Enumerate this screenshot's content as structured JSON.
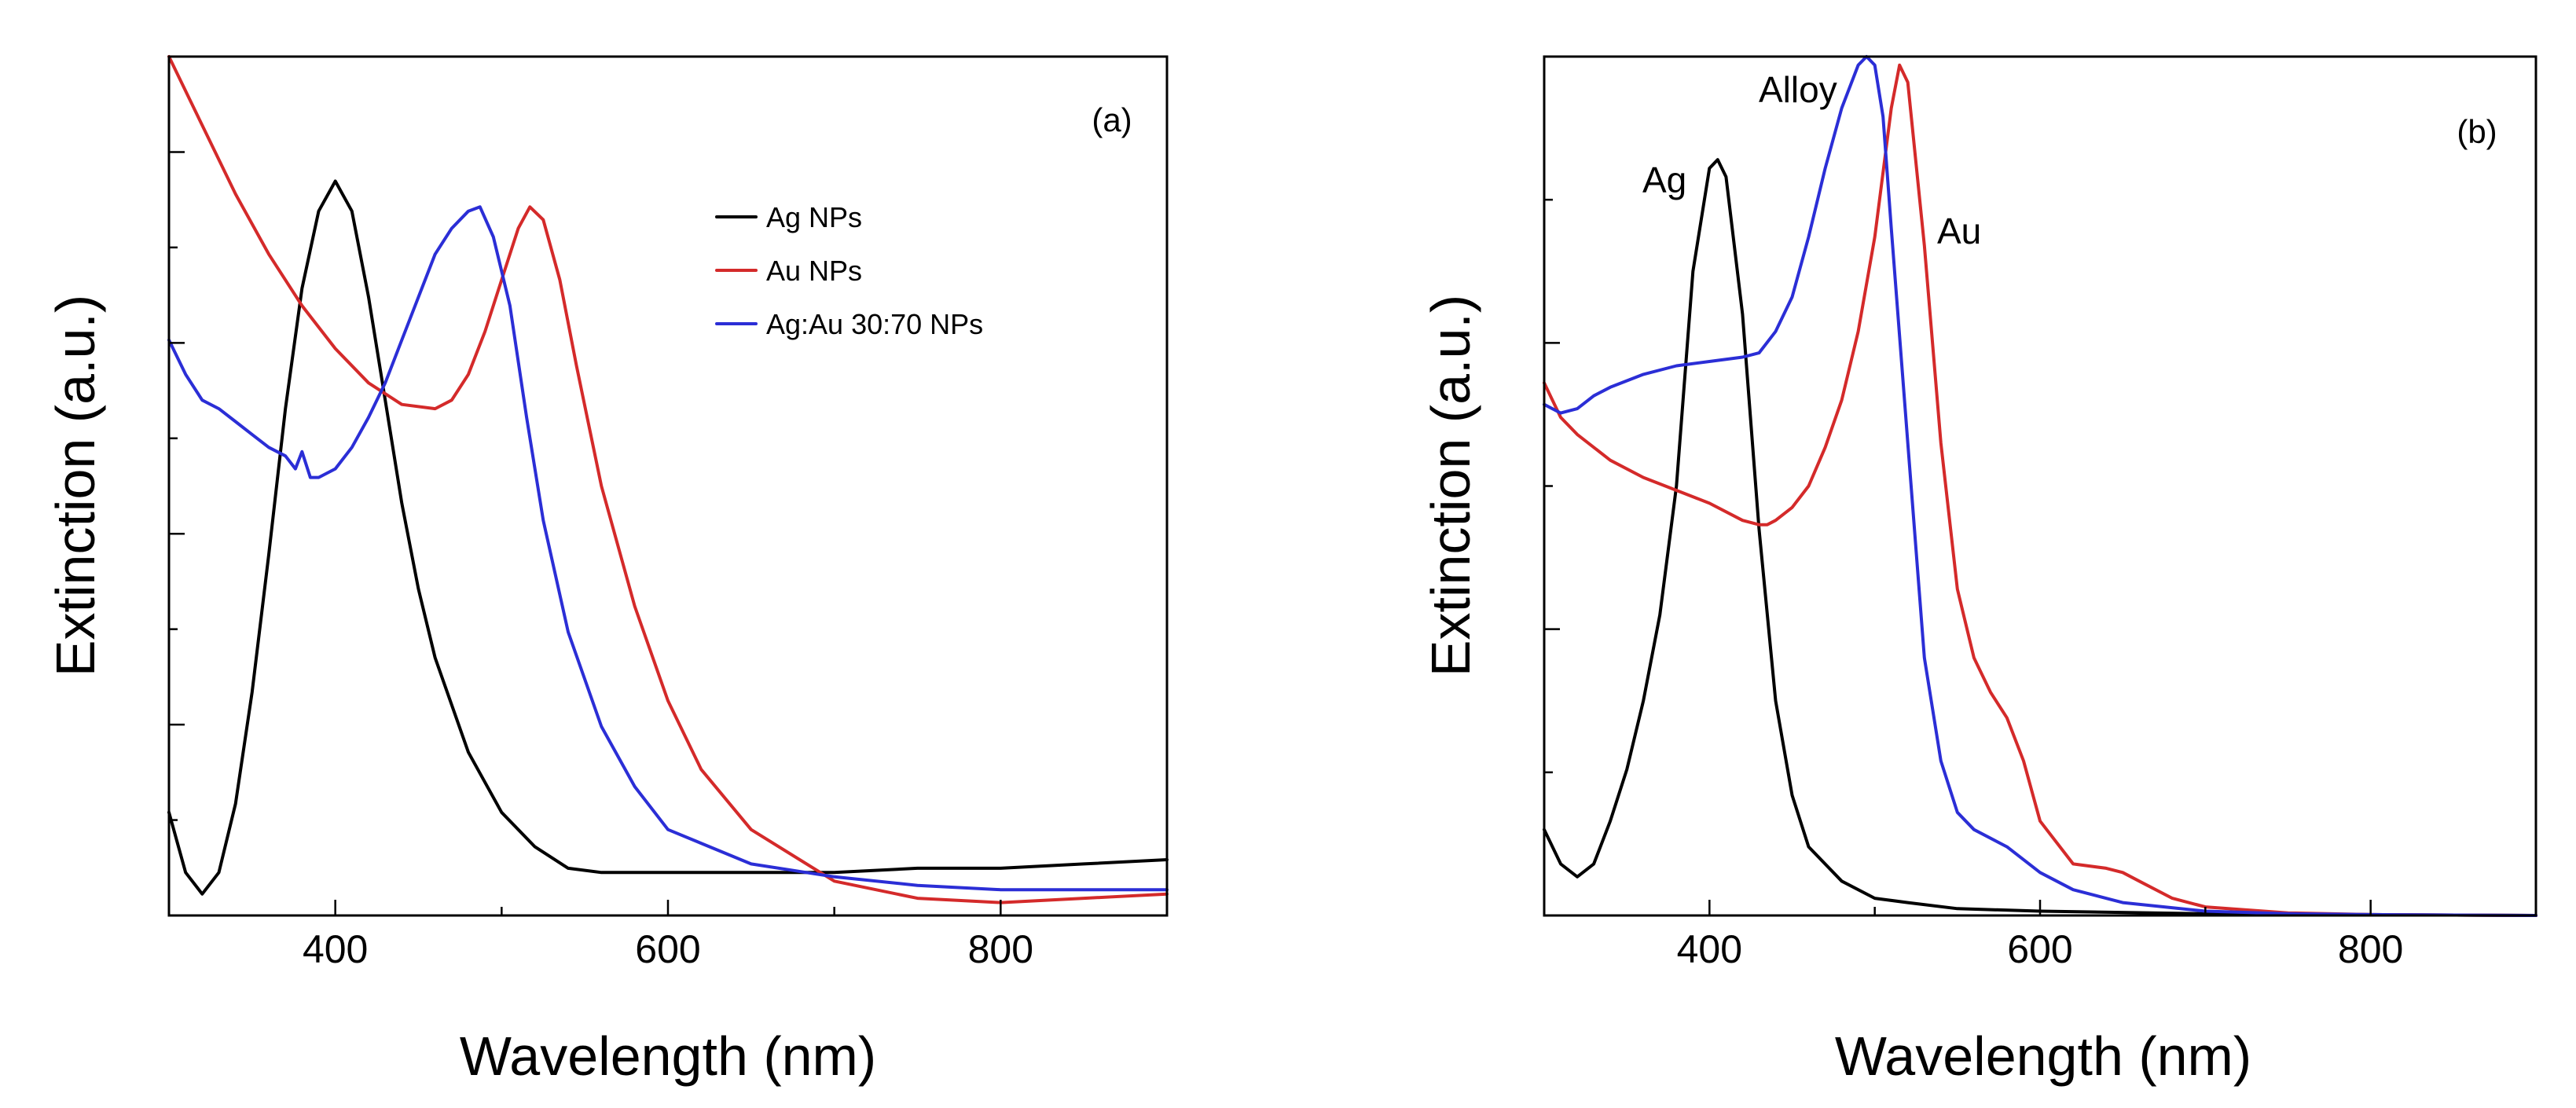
{
  "chart_data": [
    {
      "type": "line",
      "panel_label": "(a)",
      "title": "",
      "xlabel": "Wavelength (nm)",
      "ylabel": "Extinction (a.u.)",
      "xlim": [
        300,
        900
      ],
      "ylim": [
        0,
        1
      ],
      "x_ticks": [
        400,
        600,
        800
      ],
      "y_tick_labels_shown": false,
      "grid": false,
      "legend_position": "top-right",
      "series": [
        {
          "name": "Ag NPs",
          "color": "#000000",
          "x": [
            300,
            310,
            320,
            330,
            340,
            350,
            360,
            370,
            380,
            390,
            400,
            410,
            420,
            430,
            440,
            450,
            460,
            480,
            500,
            520,
            540,
            560,
            580,
            600,
            650,
            700,
            750,
            800,
            850,
            900
          ],
          "y": [
            0.12,
            0.05,
            0.025,
            0.05,
            0.13,
            0.26,
            0.42,
            0.59,
            0.73,
            0.82,
            0.855,
            0.82,
            0.72,
            0.6,
            0.48,
            0.38,
            0.3,
            0.19,
            0.12,
            0.08,
            0.055,
            0.05,
            0.05,
            0.05,
            0.05,
            0.05,
            0.055,
            0.055,
            0.06,
            0.065
          ]
        },
        {
          "name": "Au NPs",
          "color": "#d42a2a",
          "x": [
            300,
            320,
            340,
            360,
            380,
            400,
            420,
            440,
            460,
            470,
            480,
            490,
            500,
            510,
            517,
            525,
            535,
            545,
            560,
            580,
            600,
            620,
            650,
            700,
            750,
            800,
            850,
            900
          ],
          "y": [
            1.0,
            0.92,
            0.84,
            0.77,
            0.71,
            0.66,
            0.62,
            0.595,
            0.59,
            0.6,
            0.63,
            0.68,
            0.74,
            0.8,
            0.825,
            0.81,
            0.74,
            0.64,
            0.5,
            0.36,
            0.25,
            0.17,
            0.1,
            0.04,
            0.02,
            0.015,
            0.02,
            0.025
          ]
        },
        {
          "name": "Ag:Au 30:70 NPs",
          "color": "#2b2ed6",
          "x": [
            300,
            310,
            320,
            330,
            340,
            350,
            360,
            370,
            376,
            380,
            385,
            390,
            400,
            410,
            420,
            430,
            440,
            450,
            460,
            470,
            480,
            487,
            495,
            505,
            515,
            525,
            540,
            560,
            580,
            600,
            650,
            700,
            750,
            800,
            850,
            900
          ],
          "y": [
            0.67,
            0.63,
            0.6,
            0.59,
            0.575,
            0.56,
            0.545,
            0.535,
            0.52,
            0.54,
            0.51,
            0.51,
            0.52,
            0.545,
            0.58,
            0.62,
            0.67,
            0.72,
            0.77,
            0.8,
            0.82,
            0.825,
            0.79,
            0.71,
            0.58,
            0.46,
            0.33,
            0.22,
            0.15,
            0.1,
            0.06,
            0.045,
            0.035,
            0.03,
            0.03,
            0.03
          ]
        }
      ]
    },
    {
      "type": "line",
      "panel_label": "(b)",
      "title": "",
      "xlabel": "Wavelength (nm)",
      "ylabel": "Extinction (a.u.)",
      "xlim": [
        300,
        900
      ],
      "ylim": [
        0,
        1
      ],
      "x_ticks": [
        400,
        600,
        800
      ],
      "y_tick_labels_shown": false,
      "grid": false,
      "annotations": [
        "Ag",
        "Alloy",
        "Au"
      ],
      "series": [
        {
          "name": "Ag",
          "color": "#000000",
          "x": [
            300,
            310,
            320,
            330,
            340,
            350,
            360,
            370,
            380,
            390,
            400,
            405,
            410,
            420,
            430,
            440,
            450,
            460,
            480,
            500,
            520,
            550,
            600,
            700,
            800,
            900
          ],
          "y": [
            0.1,
            0.06,
            0.045,
            0.06,
            0.11,
            0.17,
            0.25,
            0.35,
            0.5,
            0.75,
            0.87,
            0.88,
            0.86,
            0.7,
            0.45,
            0.25,
            0.14,
            0.08,
            0.04,
            0.02,
            0.015,
            0.008,
            0.005,
            0.002,
            0.001,
            0.0
          ]
        },
        {
          "name": "Au",
          "color": "#d42a2a",
          "x": [
            300,
            310,
            320,
            340,
            360,
            380,
            400,
            420,
            430,
            435,
            440,
            450,
            460,
            470,
            480,
            490,
            500,
            510,
            515,
            520,
            530,
            540,
            550,
            560,
            570,
            580,
            590,
            600,
            620,
            640,
            650,
            660,
            680,
            700,
            750,
            800,
            900
          ],
          "y": [
            0.62,
            0.58,
            0.56,
            0.53,
            0.51,
            0.495,
            0.48,
            0.46,
            0.455,
            0.455,
            0.46,
            0.475,
            0.5,
            0.545,
            0.6,
            0.68,
            0.79,
            0.94,
            0.99,
            0.97,
            0.78,
            0.55,
            0.38,
            0.3,
            0.26,
            0.23,
            0.18,
            0.11,
            0.06,
            0.055,
            0.05,
            0.04,
            0.02,
            0.01,
            0.003,
            0.001,
            0.0
          ]
        },
        {
          "name": "Alloy",
          "color": "#2b2ed6",
          "x": [
            300,
            310,
            320,
            330,
            340,
            360,
            380,
            400,
            420,
            430,
            440,
            450,
            460,
            470,
            480,
            490,
            495,
            500,
            505,
            510,
            520,
            530,
            540,
            550,
            560,
            580,
            600,
            620,
            650,
            700,
            750,
            800,
            900
          ],
          "y": [
            0.595,
            0.585,
            0.59,
            0.605,
            0.615,
            0.63,
            0.64,
            0.645,
            0.65,
            0.655,
            0.68,
            0.72,
            0.79,
            0.87,
            0.94,
            0.99,
            1.0,
            0.99,
            0.93,
            0.8,
            0.55,
            0.3,
            0.18,
            0.12,
            0.1,
            0.08,
            0.05,
            0.03,
            0.015,
            0.005,
            0.002,
            0.001,
            0.0
          ]
        }
      ]
    }
  ]
}
